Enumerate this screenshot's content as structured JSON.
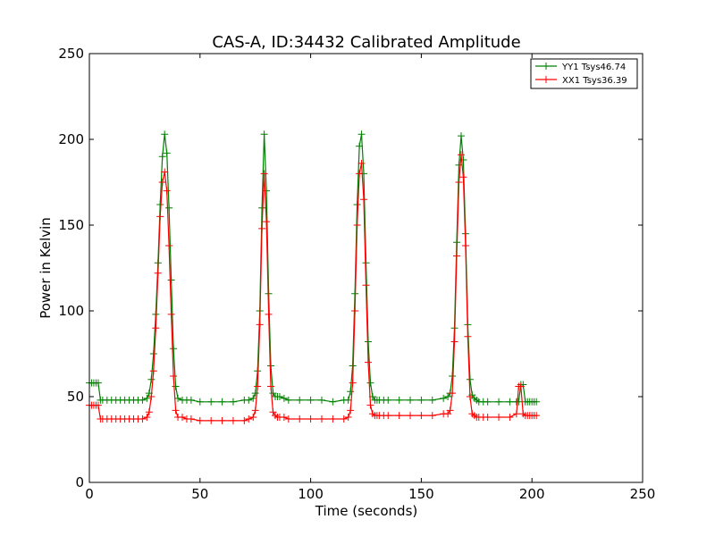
{
  "chart_data": {
    "type": "line",
    "title": "CAS-A, ID:34432 Calibrated Amplitude",
    "xlabel": "Time (seconds)",
    "ylabel": "Power in Kelvin",
    "xlim": [
      0,
      250
    ],
    "ylim": [
      0,
      250
    ],
    "xticks": [
      0,
      50,
      100,
      150,
      200,
      250
    ],
    "yticks": [
      0,
      50,
      100,
      150,
      200,
      250
    ],
    "grid": false,
    "legend_position": "top-right",
    "series": [
      {
        "name": "YY1 Tsys46.74",
        "color": "#008000",
        "marker": "+",
        "x": [
          0,
          1,
          2,
          3,
          4,
          5,
          6,
          8,
          10,
          12,
          14,
          16,
          18,
          20,
          22,
          24,
          26,
          27,
          28,
          29,
          30,
          31,
          32,
          33,
          34,
          35,
          36,
          37,
          38,
          39,
          40,
          42,
          44,
          46,
          50,
          55,
          60,
          65,
          70,
          72,
          74,
          75,
          76,
          77,
          78,
          79,
          80,
          81,
          82,
          83,
          84,
          85,
          86,
          88,
          90,
          95,
          100,
          105,
          110,
          115,
          117,
          118,
          119,
          120,
          121,
          122,
          123,
          124,
          125,
          126,
          127,
          128,
          129,
          130,
          131,
          133,
          135,
          140,
          145,
          150,
          155,
          160,
          162,
          163,
          164,
          165,
          166,
          167,
          168,
          169,
          170,
          171,
          172,
          173,
          174,
          175,
          176,
          178,
          180,
          185,
          190,
          193,
          194,
          195,
          196,
          197,
          198,
          199,
          200,
          201,
          202
        ],
        "y": [
          58,
          58,
          58,
          58,
          58,
          48,
          48,
          48,
          48,
          48,
          48,
          48,
          48,
          48,
          48,
          48,
          49,
          52,
          60,
          75,
          98,
          128,
          162,
          190,
          203,
          192,
          160,
          118,
          78,
          56,
          49,
          48,
          48,
          48,
          47,
          47,
          47,
          47,
          48,
          48,
          49,
          52,
          65,
          100,
          160,
          203,
          170,
          110,
          68,
          52,
          50,
          50,
          50,
          49,
          48,
          48,
          48,
          48,
          47,
          48,
          48,
          53,
          68,
          110,
          162,
          196,
          203,
          180,
          128,
          82,
          58,
          50,
          48,
          48,
          48,
          48,
          48,
          48,
          48,
          48,
          48,
          49,
          50,
          52,
          62,
          90,
          140,
          185,
          202,
          188,
          145,
          92,
          60,
          51,
          49,
          48,
          47,
          47,
          47,
          47,
          47,
          47,
          47,
          57,
          57,
          47,
          47,
          47,
          47,
          47,
          47
        ]
      },
      {
        "name": "XX1 Tsys36.39",
        "color": "#ff0000",
        "marker": "+",
        "x": [
          0,
          1,
          2,
          3,
          4,
          5,
          6,
          8,
          10,
          12,
          14,
          16,
          18,
          20,
          22,
          24,
          26,
          27,
          28,
          29,
          30,
          31,
          32,
          33,
          34,
          35,
          36,
          37,
          38,
          39,
          40,
          42,
          44,
          46,
          50,
          55,
          60,
          65,
          70,
          72,
          74,
          75,
          76,
          77,
          78,
          79,
          80,
          81,
          82,
          83,
          84,
          85,
          86,
          88,
          90,
          95,
          100,
          105,
          110,
          115,
          117,
          118,
          119,
          120,
          121,
          122,
          123,
          124,
          125,
          126,
          127,
          128,
          129,
          130,
          131,
          133,
          135,
          140,
          145,
          150,
          155,
          160,
          162,
          163,
          164,
          165,
          166,
          167,
          168,
          169,
          170,
          171,
          172,
          173,
          174,
          175,
          176,
          178,
          180,
          185,
          190,
          193,
          194,
          195,
          196,
          197,
          198,
          199,
          200,
          201,
          202
        ],
        "y": [
          45,
          45,
          45,
          45,
          45,
          37,
          37,
          37,
          37,
          37,
          37,
          37,
          37,
          37,
          37,
          37,
          38,
          41,
          50,
          65,
          90,
          122,
          155,
          175,
          181,
          170,
          138,
          98,
          62,
          42,
          38,
          38,
          37,
          37,
          36,
          36,
          36,
          36,
          36,
          37,
          38,
          42,
          56,
          92,
          148,
          180,
          152,
          98,
          56,
          41,
          39,
          38,
          38,
          38,
          37,
          37,
          37,
          37,
          37,
          37,
          38,
          42,
          58,
          100,
          150,
          180,
          186,
          165,
          115,
          70,
          45,
          40,
          39,
          39,
          39,
          39,
          39,
          39,
          39,
          39,
          39,
          40,
          40,
          42,
          52,
          82,
          132,
          175,
          191,
          178,
          138,
          85,
          50,
          40,
          39,
          38,
          38,
          38,
          38,
          38,
          38,
          40,
          56,
          56,
          40,
          39,
          39,
          39,
          39,
          39,
          39
        ]
      }
    ]
  }
}
